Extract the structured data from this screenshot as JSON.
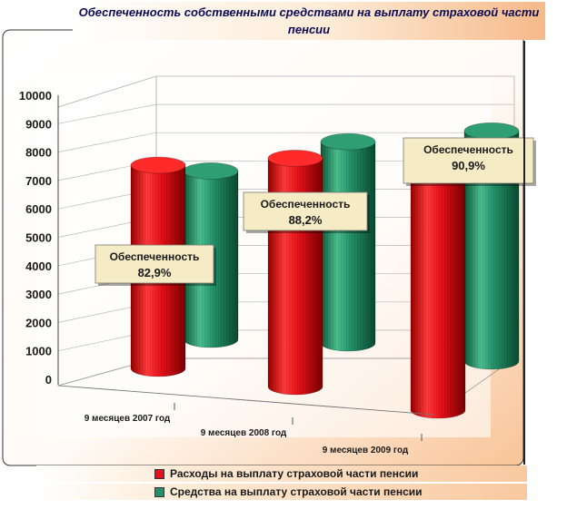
{
  "chart_data": {
    "type": "bar",
    "style": "3d-cylinder",
    "title": "Обеспеченность собственными средствами на выплату страховой части пенсии",
    "categories": [
      "9 месяцев 2007 год",
      "9 месяцев 2008 год",
      "9 месяцев 2009 год"
    ],
    "series": [
      {
        "name": "Расходы на выплату страховой части пенсии",
        "color": "#e8101a",
        "values": [
          7300,
          8200,
          9100
        ]
      },
      {
        "name": "Средства на выплату страховой части пенсии",
        "color": "#23906a",
        "values": [
          6050,
          7230,
          8270
        ]
      }
    ],
    "yticks": [
      0,
      1000,
      2000,
      3000,
      4000,
      5000,
      6000,
      7000,
      8000,
      9000,
      10000
    ],
    "ylim": [
      0,
      10000
    ],
    "grid": true,
    "legend_position": "bottom",
    "annotations": [
      {
        "line1": "Обеспеченность",
        "line2": "82,9%"
      },
      {
        "line1": "Обеспеченность",
        "line2": "88,2%"
      },
      {
        "line1": "Обеспеченность",
        "line2": "90,9%"
      }
    ]
  }
}
